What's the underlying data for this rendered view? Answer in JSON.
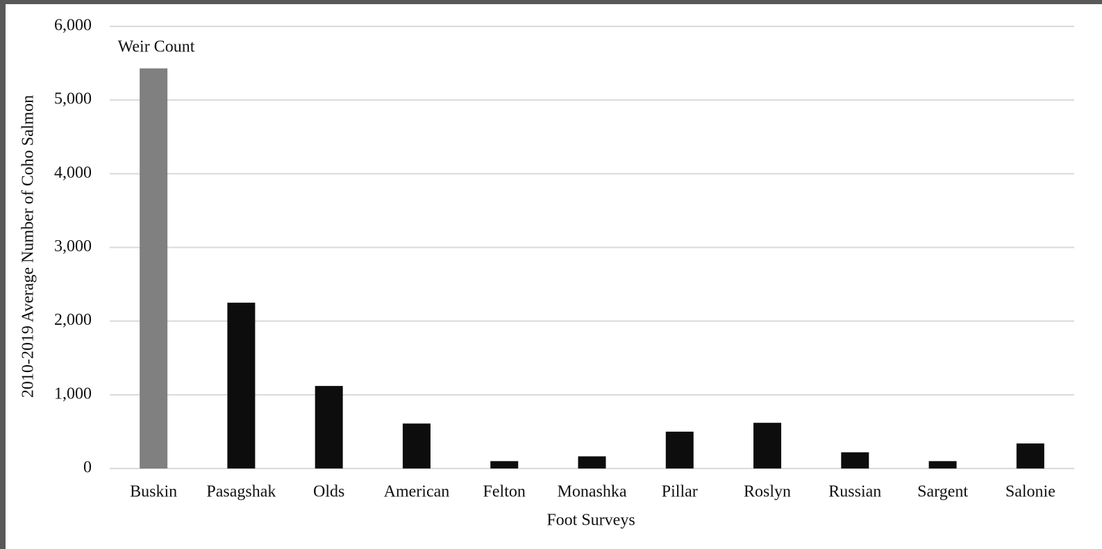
{
  "chart_data": {
    "type": "bar",
    "annotation": "Weir Count",
    "x_label": "Foot Surveys",
    "y_label": "2010-2019 Average Number of Coho Salmon",
    "categories": [
      "Buskin",
      "Pasagshak",
      "Olds",
      "American",
      "Felton",
      "Monashka",
      "Pillar",
      "Roslyn",
      "Russian",
      "Sargent",
      "Salonie"
    ],
    "values": [
      5430,
      2250,
      1120,
      610,
      100,
      165,
      500,
      620,
      220,
      100,
      340
    ],
    "colors": [
      "#808080",
      "#0d0d0d",
      "#0d0d0d",
      "#0d0d0d",
      "#0d0d0d",
      "#0d0d0d",
      "#0d0d0d",
      "#0d0d0d",
      "#0d0d0d",
      "#0d0d0d",
      "#0d0d0d"
    ],
    "ylim": [
      0,
      6000
    ],
    "yticks": [
      0,
      {
        "value": 1000,
        "label": "1,000"
      },
      {
        "value": 2000,
        "label": "2,000"
      },
      {
        "value": 3000,
        "label": "3,000"
      },
      {
        "value": 4000,
        "label": "4,000"
      },
      {
        "value": 5000,
        "label": "5,000"
      },
      {
        "value": 6000,
        "label": "6,000"
      }
    ],
    "grid": true
  }
}
